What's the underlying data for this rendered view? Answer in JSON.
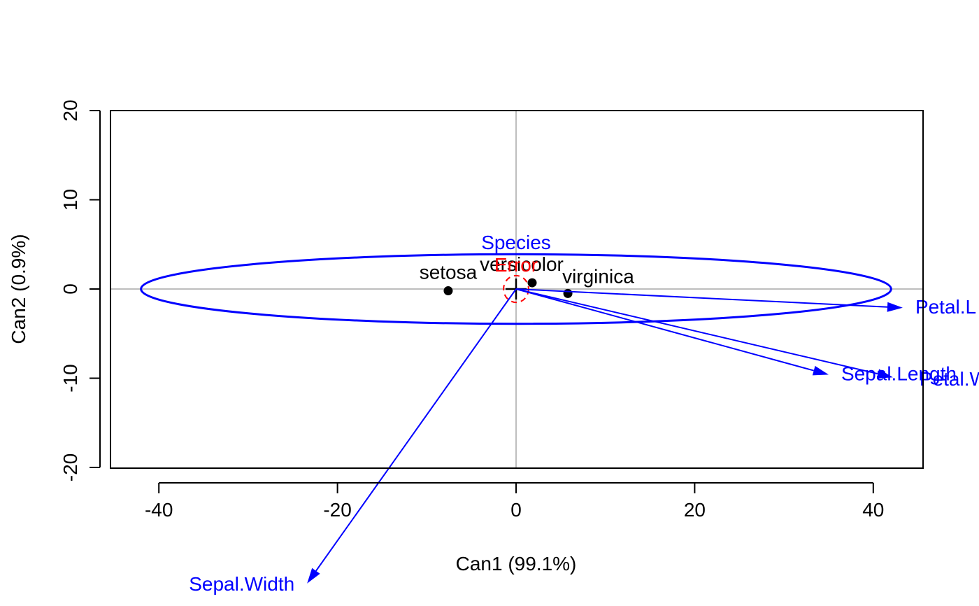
{
  "chart_data": {
    "type": "scatter",
    "title": "",
    "xlabel": "Can1 (99.1%)",
    "ylabel": "Can2 (0.9%)",
    "xlim": [
      -45.5,
      45.5
    ],
    "ylim": [
      -20,
      20
    ],
    "xticks": [
      -40,
      -20,
      0,
      20,
      40
    ],
    "yticks": [
      -20,
      -10,
      0,
      10,
      20
    ],
    "xtick_labels": [
      "-40",
      "-20",
      "0",
      "20",
      "40"
    ],
    "ytick_labels": [
      "-20",
      "-10",
      "0",
      "10",
      "20"
    ],
    "reference_lines": {
      "x": 0,
      "y": 0,
      "color": "#bebebe"
    },
    "points": [
      {
        "name": "setosa",
        "x": -7.6,
        "y": -0.2
      },
      {
        "name": "versicolor",
        "x": 1.8,
        "y": 0.7
      },
      {
        "name": "virginica",
        "x": 5.8,
        "y": -0.5
      }
    ],
    "point_color": "#000000",
    "vectors": [
      {
        "name": "Sepal.Length",
        "x": 35.0,
        "y": -9.6
      },
      {
        "name": "Sepal.Width",
        "x": -23.4,
        "y": -33.0
      },
      {
        "name": "Petal.Length",
        "x": 43.3,
        "y": -2.1
      },
      {
        "name": "Petal.Width",
        "x": 42.2,
        "y": -9.9
      }
    ],
    "vector_labels_display": [
      "Sepal.Length",
      "Sepal.Width",
      "Petal.L",
      "Petal.W"
    ],
    "vector_color": "#0000ff",
    "ellipses": [
      {
        "name": "Species",
        "cx": 0,
        "cy": 0,
        "rx": 42.0,
        "ry": 3.9,
        "color": "#0000ff"
      },
      {
        "name": "Error",
        "cx": 0,
        "cy": 0,
        "rx": 1.4,
        "ry": 1.5,
        "color": "#ff0000"
      }
    ],
    "ellipse_labels_display": [
      "Species",
      "Error"
    ],
    "grid": false,
    "legend": "none"
  }
}
